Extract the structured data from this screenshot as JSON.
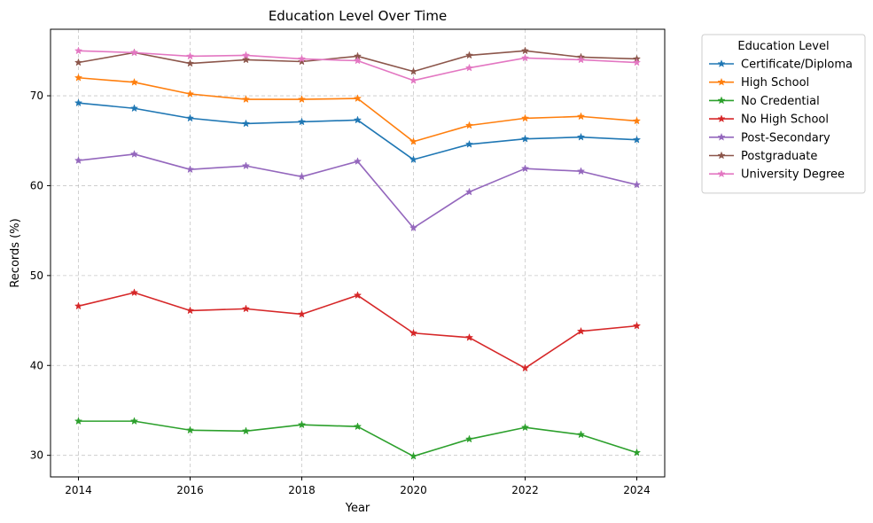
{
  "chart_data": {
    "type": "line",
    "title": "Education Level Over Time",
    "xlabel": "Year",
    "ylabel": "Records (%)",
    "x": [
      2014,
      2015,
      2016,
      2017,
      2018,
      2019,
      2020,
      2021,
      2022,
      2023,
      2024
    ],
    "xlim": [
      2013.5,
      2024.5
    ],
    "ylim": [
      27.6,
      77.4
    ],
    "xticks": [
      2014,
      2016,
      2018,
      2020,
      2022,
      2024
    ],
    "yticks": [
      30,
      40,
      50,
      60,
      70
    ],
    "grid": true,
    "marker": "star",
    "legend": {
      "title": "Education Level",
      "placement": "outside-top-right"
    },
    "series": [
      {
        "name": "Certificate/Diploma",
        "color": "#1f77b4",
        "values": [
          69.2,
          68.6,
          67.5,
          66.9,
          67.1,
          67.3,
          62.9,
          64.6,
          65.2,
          65.4,
          65.1
        ]
      },
      {
        "name": "High School",
        "color": "#ff7f0e",
        "values": [
          72.0,
          71.5,
          70.2,
          69.6,
          69.6,
          69.7,
          64.9,
          66.7,
          67.5,
          67.7,
          67.2
        ]
      },
      {
        "name": "No Credential",
        "color": "#2ca02c",
        "values": [
          33.8,
          33.8,
          32.8,
          32.7,
          33.4,
          33.2,
          29.9,
          31.8,
          33.1,
          32.3,
          30.3
        ]
      },
      {
        "name": "No High School",
        "color": "#d62728",
        "values": [
          46.6,
          48.1,
          46.1,
          46.3,
          45.7,
          47.8,
          43.6,
          43.1,
          39.7,
          43.8,
          44.4
        ]
      },
      {
        "name": "Post-Secondary",
        "color": "#9467bd",
        "values": [
          62.8,
          63.5,
          61.8,
          62.2,
          61.0,
          62.7,
          55.3,
          59.3,
          61.9,
          61.6,
          60.1
        ]
      },
      {
        "name": "Postgraduate",
        "color": "#8c564b",
        "values": [
          73.7,
          74.8,
          73.6,
          74.0,
          73.8,
          74.4,
          72.7,
          74.5,
          75.0,
          74.3,
          74.1
        ]
      },
      {
        "name": "University Degree",
        "color": "#e377c2",
        "values": [
          75.0,
          74.8,
          74.4,
          74.5,
          74.1,
          73.9,
          71.7,
          73.1,
          74.2,
          74.0,
          73.7
        ]
      }
    ]
  }
}
